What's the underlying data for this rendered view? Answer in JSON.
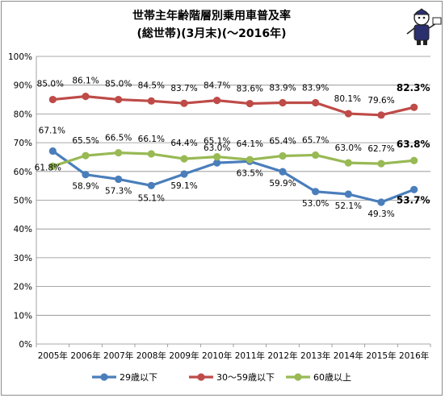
{
  "chart_data": {
    "type": "line",
    "title": "世帯主年齢階層別乗用車普及率",
    "subtitle": "(総世帯)(3月末)(〜2016年)",
    "categories": [
      "2005年",
      "2006年",
      "2007年",
      "2008年",
      "2009年",
      "2010年",
      "2011年",
      "2012年",
      "2013年",
      "2014年",
      "2015年",
      "2016年"
    ],
    "ylim": [
      0,
      100
    ],
    "yticks": [
      "0%",
      "10%",
      "20%",
      "30%",
      "40%",
      "50%",
      "60%",
      "70%",
      "80%",
      "90%",
      "100%"
    ],
    "grid": true,
    "legend_position": "bottom",
    "series": [
      {
        "name": "29歳以下",
        "color": "#4a7ebb",
        "values": [
          67.1,
          58.9,
          57.3,
          55.1,
          59.1,
          63.0,
          63.5,
          59.9,
          53.0,
          52.1,
          49.3,
          53.7
        ],
        "labels": [
          "67.1%",
          "58.9%",
          "57.3%",
          "55.1%",
          "59.1%",
          "63.0%",
          "63.5%",
          "59.9%",
          "53.0%",
          "52.1%",
          "49.3%",
          "53.7%"
        ]
      },
      {
        "name": "30〜59歳以下",
        "color": "#be4b48",
        "values": [
          85.0,
          86.1,
          85.0,
          84.5,
          83.7,
          84.7,
          83.6,
          83.9,
          83.9,
          80.1,
          79.6,
          82.3
        ],
        "labels": [
          "85.0%",
          "86.1%",
          "85.0%",
          "84.5%",
          "83.7%",
          "84.7%",
          "83.6%",
          "83.9%",
          "83.9%",
          "80.1%",
          "79.6%",
          "82.3%"
        ]
      },
      {
        "name": "60歳以上",
        "color": "#98b954",
        "values": [
          61.8,
          65.5,
          66.5,
          66.1,
          64.4,
          65.1,
          64.1,
          65.4,
          65.7,
          63.0,
          62.7,
          63.8
        ],
        "labels": [
          "61.8%",
          "65.5%",
          "66.5%",
          "66.1%",
          "64.4%",
          "65.1%",
          "64.1%",
          "65.4%",
          "65.7%",
          "63.0%",
          "62.7%",
          "63.8%"
        ]
      }
    ]
  }
}
